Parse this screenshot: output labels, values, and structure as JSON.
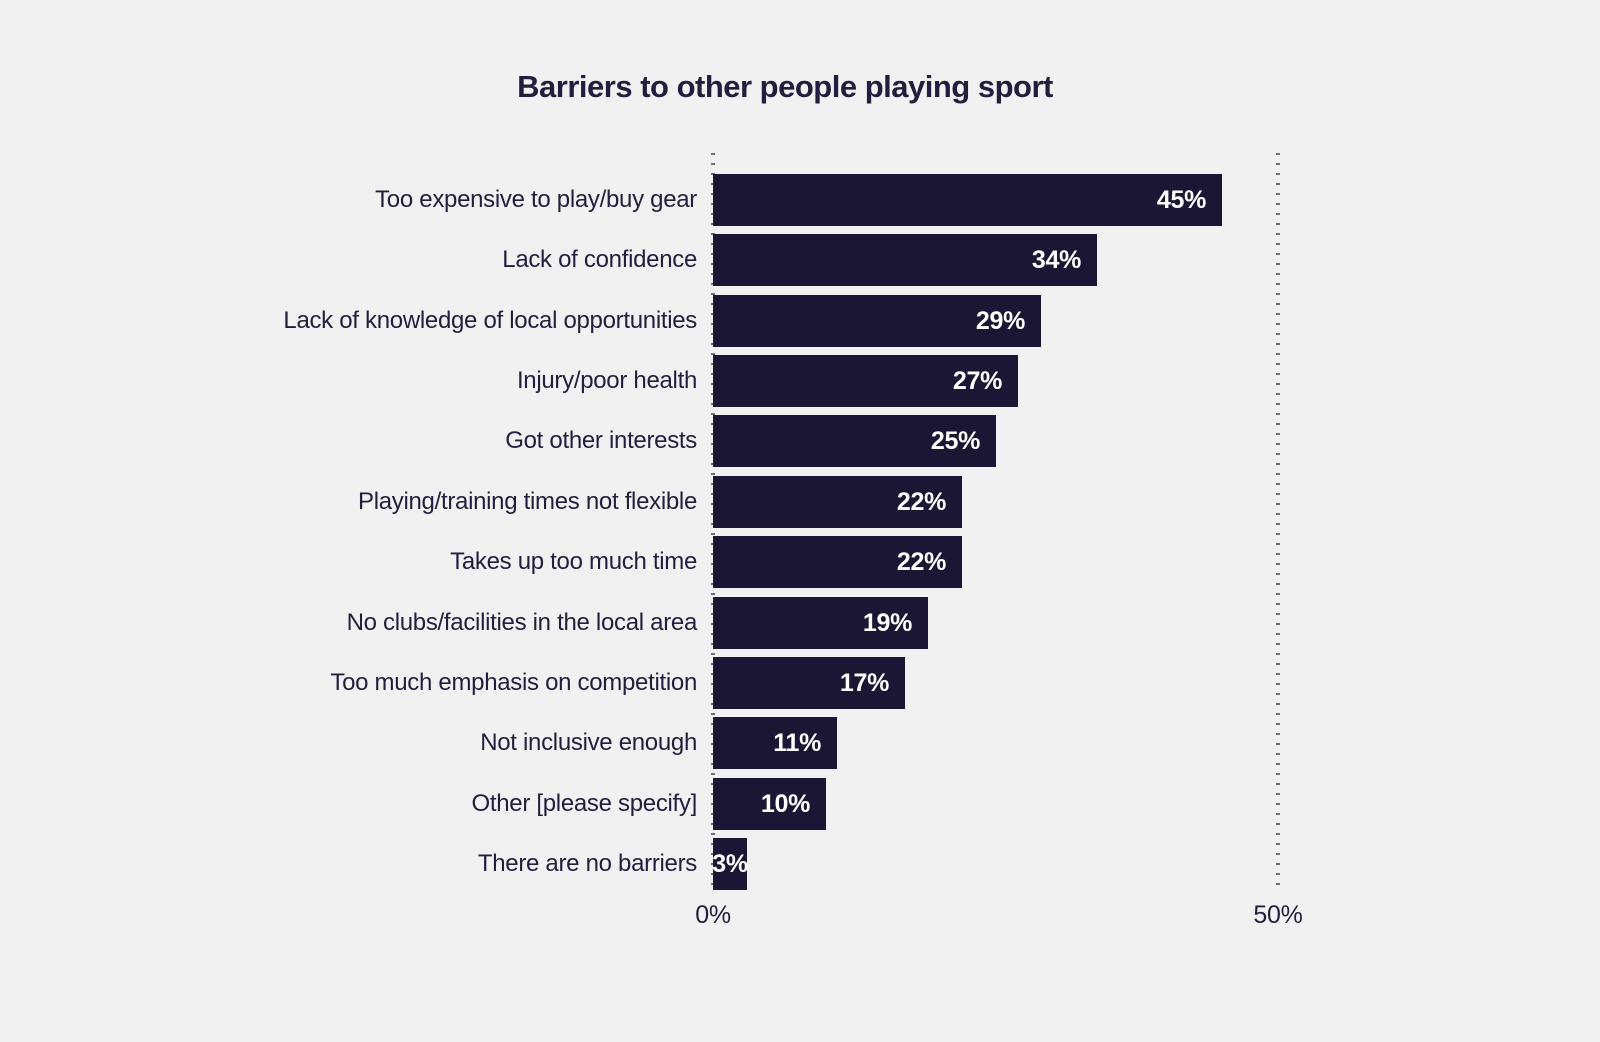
{
  "page": {
    "background_color": "#f0f1f0"
  },
  "chart_data": {
    "type": "bar",
    "orientation": "horizontal",
    "title": "Barriers to other people playing sport",
    "categories": [
      "Too expensive to play/buy gear",
      "Lack of confidence",
      "Lack of knowledge of local opportunities",
      "Injury/poor health",
      "Got other interests",
      "Playing/training times not flexible",
      "Takes up too much time",
      "No clubs/facilities in the local area",
      "Too much emphasis on competition",
      "Not inclusive enough",
      "Other [please specify]",
      "There are no barriers"
    ],
    "values": [
      45,
      34,
      29,
      27,
      25,
      22,
      22,
      19,
      17,
      11,
      10,
      3
    ],
    "value_suffix": "%",
    "xlabel": "",
    "ylabel": "",
    "xlim": [
      0,
      50
    ],
    "x_ticks": [
      "0%",
      "50%"
    ],
    "gridlines": "dotted vertical at 0% and 50%",
    "legend": "none",
    "bar_color": "#1c1635",
    "category_label_color": "#231e3e",
    "value_label_color": "#ffffff",
    "axis_label_color": "#231e3e"
  }
}
